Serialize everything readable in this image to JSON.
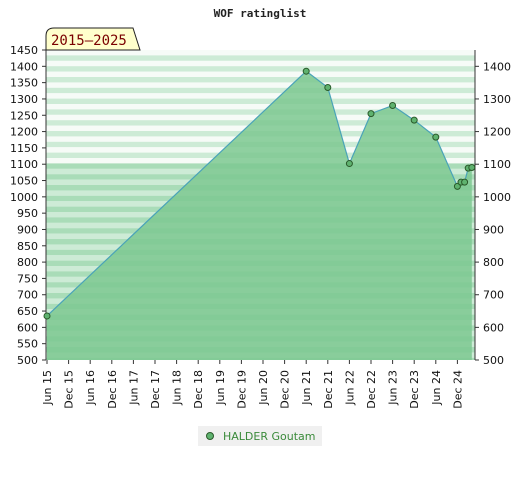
{
  "chart_data": {
    "type": "area",
    "title": "WOF ratinglist",
    "period_label": "2015–2025",
    "ylim": [
      500,
      1450
    ],
    "left_ticks": [
      500,
      550,
      600,
      650,
      700,
      750,
      800,
      850,
      900,
      950,
      1000,
      1050,
      1100,
      1150,
      1200,
      1250,
      1300,
      1350,
      1400,
      1450
    ],
    "right_ticks": [
      500,
      600,
      700,
      800,
      900,
      1000,
      1100,
      1200,
      1300,
      1400
    ],
    "x_tick_labels": [
      "Jun 15",
      "Dec 15",
      "Jun 16",
      "Dec 16",
      "Jun 17",
      "Dec 17",
      "Jun 18",
      "Dec 18",
      "Jun 19",
      "Dec 19",
      "Jun 20",
      "Dec 20",
      "Jun 21",
      "Dec 21",
      "Jun 22",
      "Dec 22",
      "Jun 23",
      "Dec 23",
      "Jun 24",
      "Dec 24"
    ],
    "series": [
      {
        "name": "HALDER Goutam",
        "points": [
          {
            "x": "2015-06",
            "y": 635
          },
          {
            "x": "2021-06",
            "y": 1385
          },
          {
            "x": "2021-12",
            "y": 1335
          },
          {
            "x": "2022-06",
            "y": 1102
          },
          {
            "x": "2022-12",
            "y": 1255
          },
          {
            "x": "2023-06",
            "y": 1280
          },
          {
            "x": "2023-12",
            "y": 1235
          },
          {
            "x": "2024-06",
            "y": 1183
          },
          {
            "x": "2024-12",
            "y": 1032
          },
          {
            "x": "2025-01",
            "y": 1045
          },
          {
            "x": "2025-02",
            "y": 1045
          },
          {
            "x": "2025-03",
            "y": 1088
          },
          {
            "x": "2025-04",
            "y": 1090
          }
        ]
      }
    ],
    "grid": true,
    "legend_position": "bottom-center",
    "colors": {
      "area_fill": "#7cc890",
      "line": "#4aa3b8",
      "marker": "#5fb26f",
      "marker_edge": "#2a5a2a",
      "label_box": "#ffffcc"
    }
  },
  "legend": {
    "label": "HALDER Goutam"
  }
}
